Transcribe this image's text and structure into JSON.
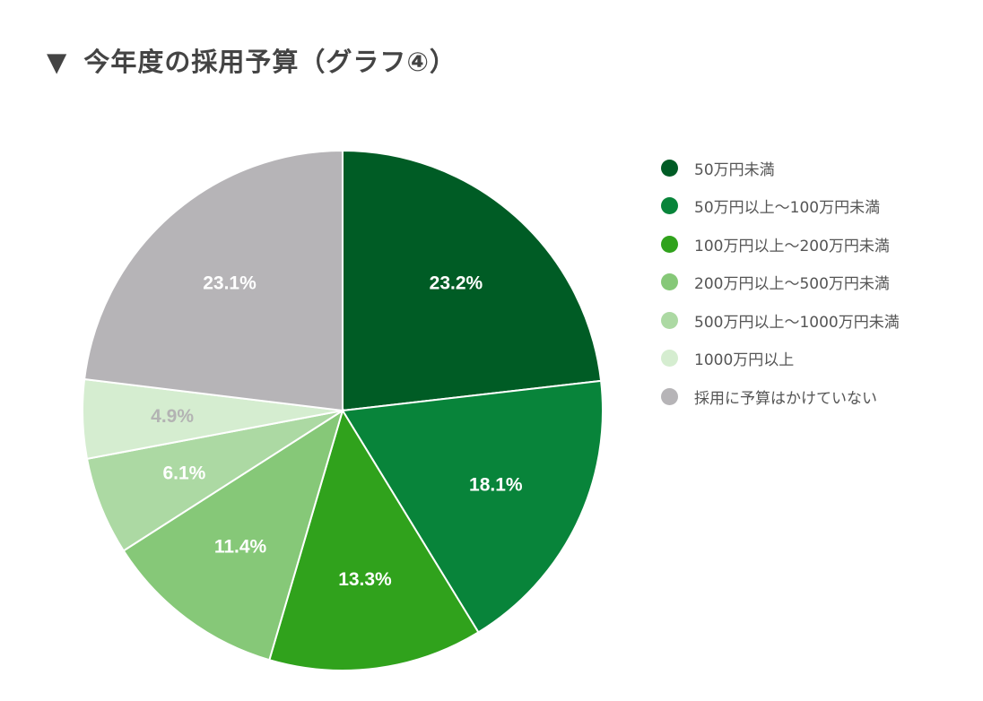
{
  "header": {
    "marker": "▼",
    "title": "今年度の採用予算（グラフ④）"
  },
  "chart_data": {
    "type": "pie",
    "title": "今年度の採用予算（グラフ④）",
    "legend_position": "right",
    "categories": [
      "50万円未満",
      "50万円以上～100万円未満",
      "100万円以上～200万円未満",
      "200万円以上～500万円未満",
      "500万円以上～1000万円未満",
      "1000万円以上",
      "採用に予算はかけていない"
    ],
    "values": [
      23.2,
      18.1,
      13.3,
      11.4,
      6.1,
      4.9,
      23.1
    ],
    "labels": [
      "23.2%",
      "18.1%",
      "13.3%",
      "11.4%",
      "6.1%",
      "4.9%",
      "23.1%"
    ],
    "colors": [
      "#005c25",
      "#08843a",
      "#30a21c",
      "#86c878",
      "#acd9a3",
      "#d5edd0",
      "#b6b4b7"
    ],
    "label_colors": [
      "#ffffff",
      "#ffffff",
      "#ffffff",
      "#ffffff",
      "#ffffff",
      "#b3b3b3",
      "#ffffff"
    ]
  }
}
